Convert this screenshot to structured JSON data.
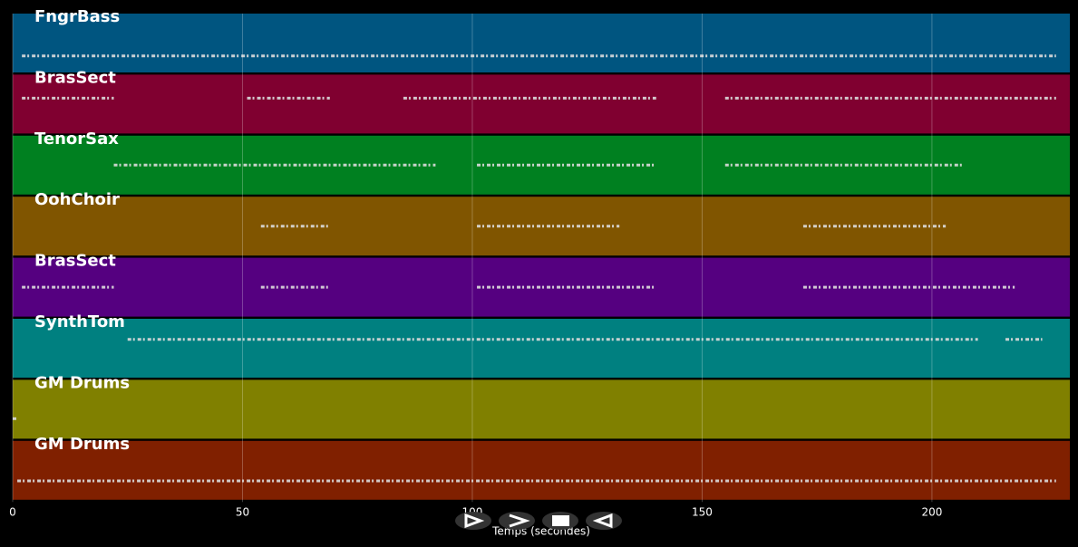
{
  "chart_data": {
    "type": "pianoroll",
    "x_label": "Temps (secondes)",
    "xlim": [
      0,
      230
    ],
    "xticks": [
      0,
      50,
      100,
      150,
      200
    ],
    "grid": true,
    "tracks": [
      {
        "name": "FngrBass",
        "color": "#005580",
        "segments": [
          [
            2,
            227
          ]
        ]
      },
      {
        "name": "BrasSect",
        "color": "#800030",
        "segments": [
          [
            2,
            22
          ],
          [
            51,
            69
          ],
          [
            85,
            140
          ],
          [
            155,
            227
          ]
        ]
      },
      {
        "name": "TenorSax",
        "color": "#008020",
        "segments": [
          [
            22,
            92
          ],
          [
            101,
            140
          ],
          [
            155,
            207
          ]
        ]
      },
      {
        "name": "OohChoir",
        "color": "#805500",
        "segments": [
          [
            54,
            69
          ],
          [
            101,
            132
          ],
          [
            172,
            203
          ]
        ]
      },
      {
        "name": "BrasSect",
        "color": "#550080",
        "segments": [
          [
            2,
            22
          ],
          [
            54,
            69
          ],
          [
            101,
            140
          ],
          [
            172,
            218
          ]
        ]
      },
      {
        "name": "SynthTom",
        "color": "#008080",
        "segments": [
          [
            25,
            210
          ],
          [
            216,
            224
          ]
        ]
      },
      {
        "name": "GM Drums",
        "color": "#808000",
        "segments": [
          [
            0,
            1
          ]
        ]
      },
      {
        "name": "GM Drums",
        "color": "#802000",
        "segments": [
          [
            1,
            227
          ]
        ]
      }
    ]
  }
}
